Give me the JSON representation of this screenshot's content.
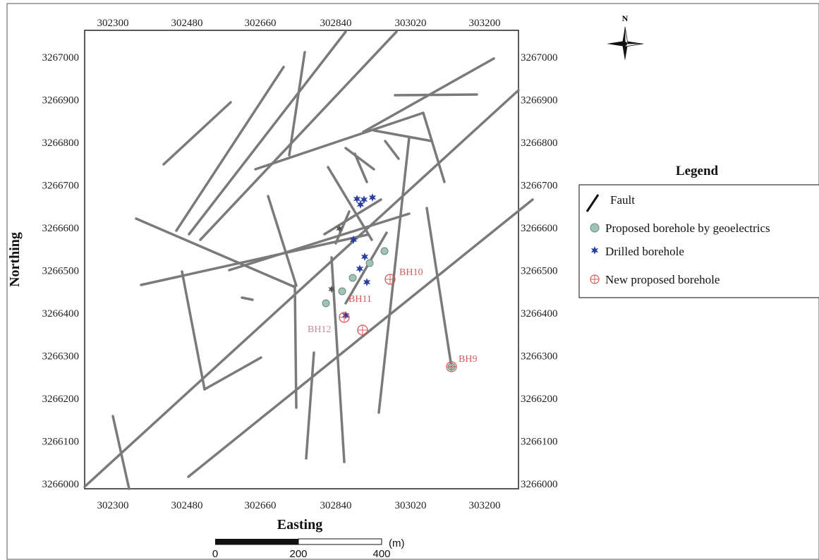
{
  "map": {
    "x_axis_title": "Easting",
    "y_axis_title": "Northing",
    "x_ticks": [
      "302300",
      "302480",
      "302660",
      "302840",
      "303020",
      "303200"
    ],
    "y_ticks": [
      "3267000",
      "3266900",
      "3266800",
      "3266700",
      "3266600",
      "3266500",
      "3266400",
      "3266300",
      "3266200",
      "3266100",
      "3266000"
    ],
    "north_label": "N",
    "fault_color": "#7a7a7a",
    "drilled_color": "#2a3e9e",
    "proposed_geo_color": "#6fa68f",
    "new_proposed_color": "#d45a5a"
  },
  "legend": {
    "title": "Legend",
    "items": [
      {
        "label": "Fault",
        "icon": "fault-line-icon"
      },
      {
        "label": "Proposed borehole by geoelectrics",
        "icon": "green-circle-icon"
      },
      {
        "label": "Drilled borehole",
        "icon": "blue-star-icon"
      },
      {
        "label": "New proposed borehole",
        "icon": "circled-plus-icon"
      }
    ]
  },
  "boreholes": [
    {
      "label": "BH9"
    },
    {
      "label": "BH10"
    },
    {
      "label": "BH11"
    },
    {
      "label": "BH12"
    }
  ],
  "scale_bar": {
    "labels": [
      "0",
      "200",
      "400"
    ],
    "unit": "(m)"
  }
}
